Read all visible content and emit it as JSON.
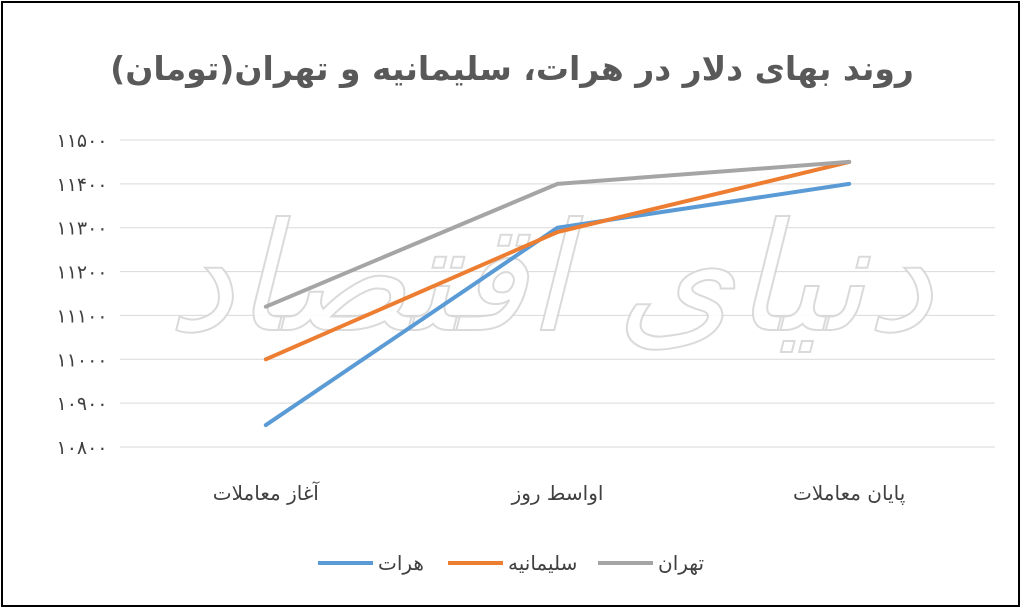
{
  "chart_data": {
    "type": "line",
    "title": "روند بهای دلار در هرات، سلیمانیه و تهران(تومان)",
    "categories": [
      "آغاز معاملات",
      "اواسط روز",
      "پایان معاملات"
    ],
    "series": [
      {
        "name": "هرات",
        "values": [
          10850,
          11300,
          11400
        ],
        "color": "#5B9BD5"
      },
      {
        "name": "سلیمانیه",
        "values": [
          11000,
          11290,
          11450
        ],
        "color": "#ED7D31"
      },
      {
        "name": "تهران",
        "values": [
          11120,
          11400,
          11450
        ],
        "color": "#A5A5A5"
      }
    ],
    "ylim": [
      10800,
      11500
    ],
    "yticks": [
      10800,
      10900,
      11000,
      11100,
      11200,
      11300,
      11400,
      11500
    ],
    "ytick_labels": [
      "۱۰۸۰۰",
      "۱۰۹۰۰",
      "۱۱۰۰۰",
      "۱۱۱۰۰",
      "۱۱۲۰۰",
      "۱۱۳۰۰",
      "۱۱۴۰۰",
      "۱۱۵۰۰"
    ],
    "grid": true,
    "legend": "bottom"
  },
  "watermark": "دنیای اقتصاد"
}
